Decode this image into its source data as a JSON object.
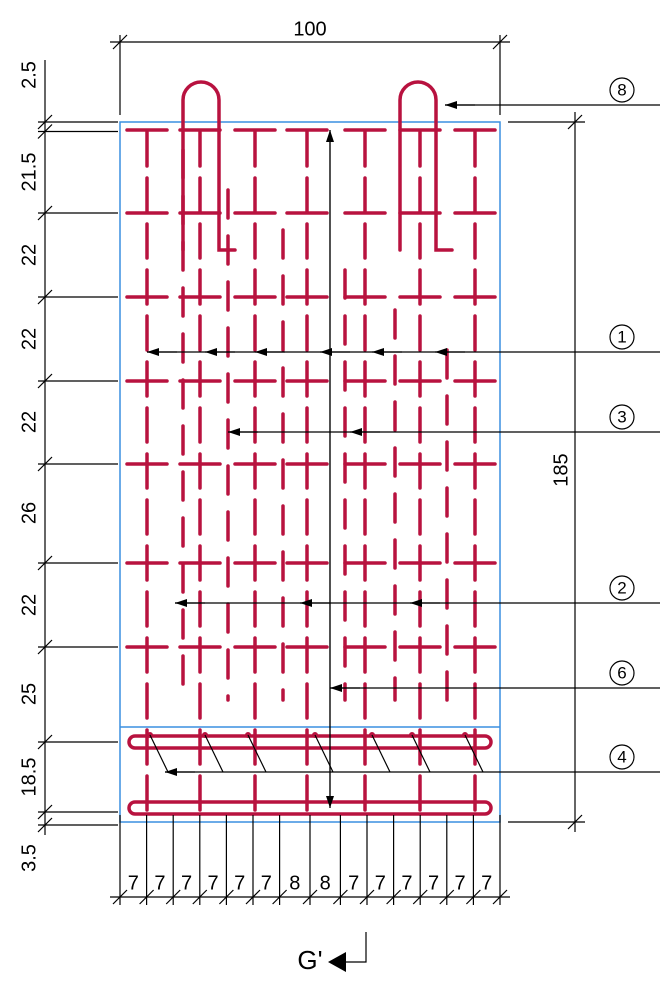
{
  "dimensions": {
    "top": "100",
    "right": "185",
    "left": [
      "2.5",
      "21.5",
      "22",
      "22",
      "22",
      "26",
      "22",
      "25",
      "18.5",
      "3.5"
    ],
    "bottom": [
      "7",
      "7",
      "7",
      "7",
      "7",
      "7",
      "8",
      "8",
      "7",
      "7",
      "7",
      "7",
      "7",
      "7"
    ]
  },
  "callouts": [
    "8",
    "1",
    "3",
    "2",
    "6",
    "4"
  ],
  "section_mark": "G'"
}
